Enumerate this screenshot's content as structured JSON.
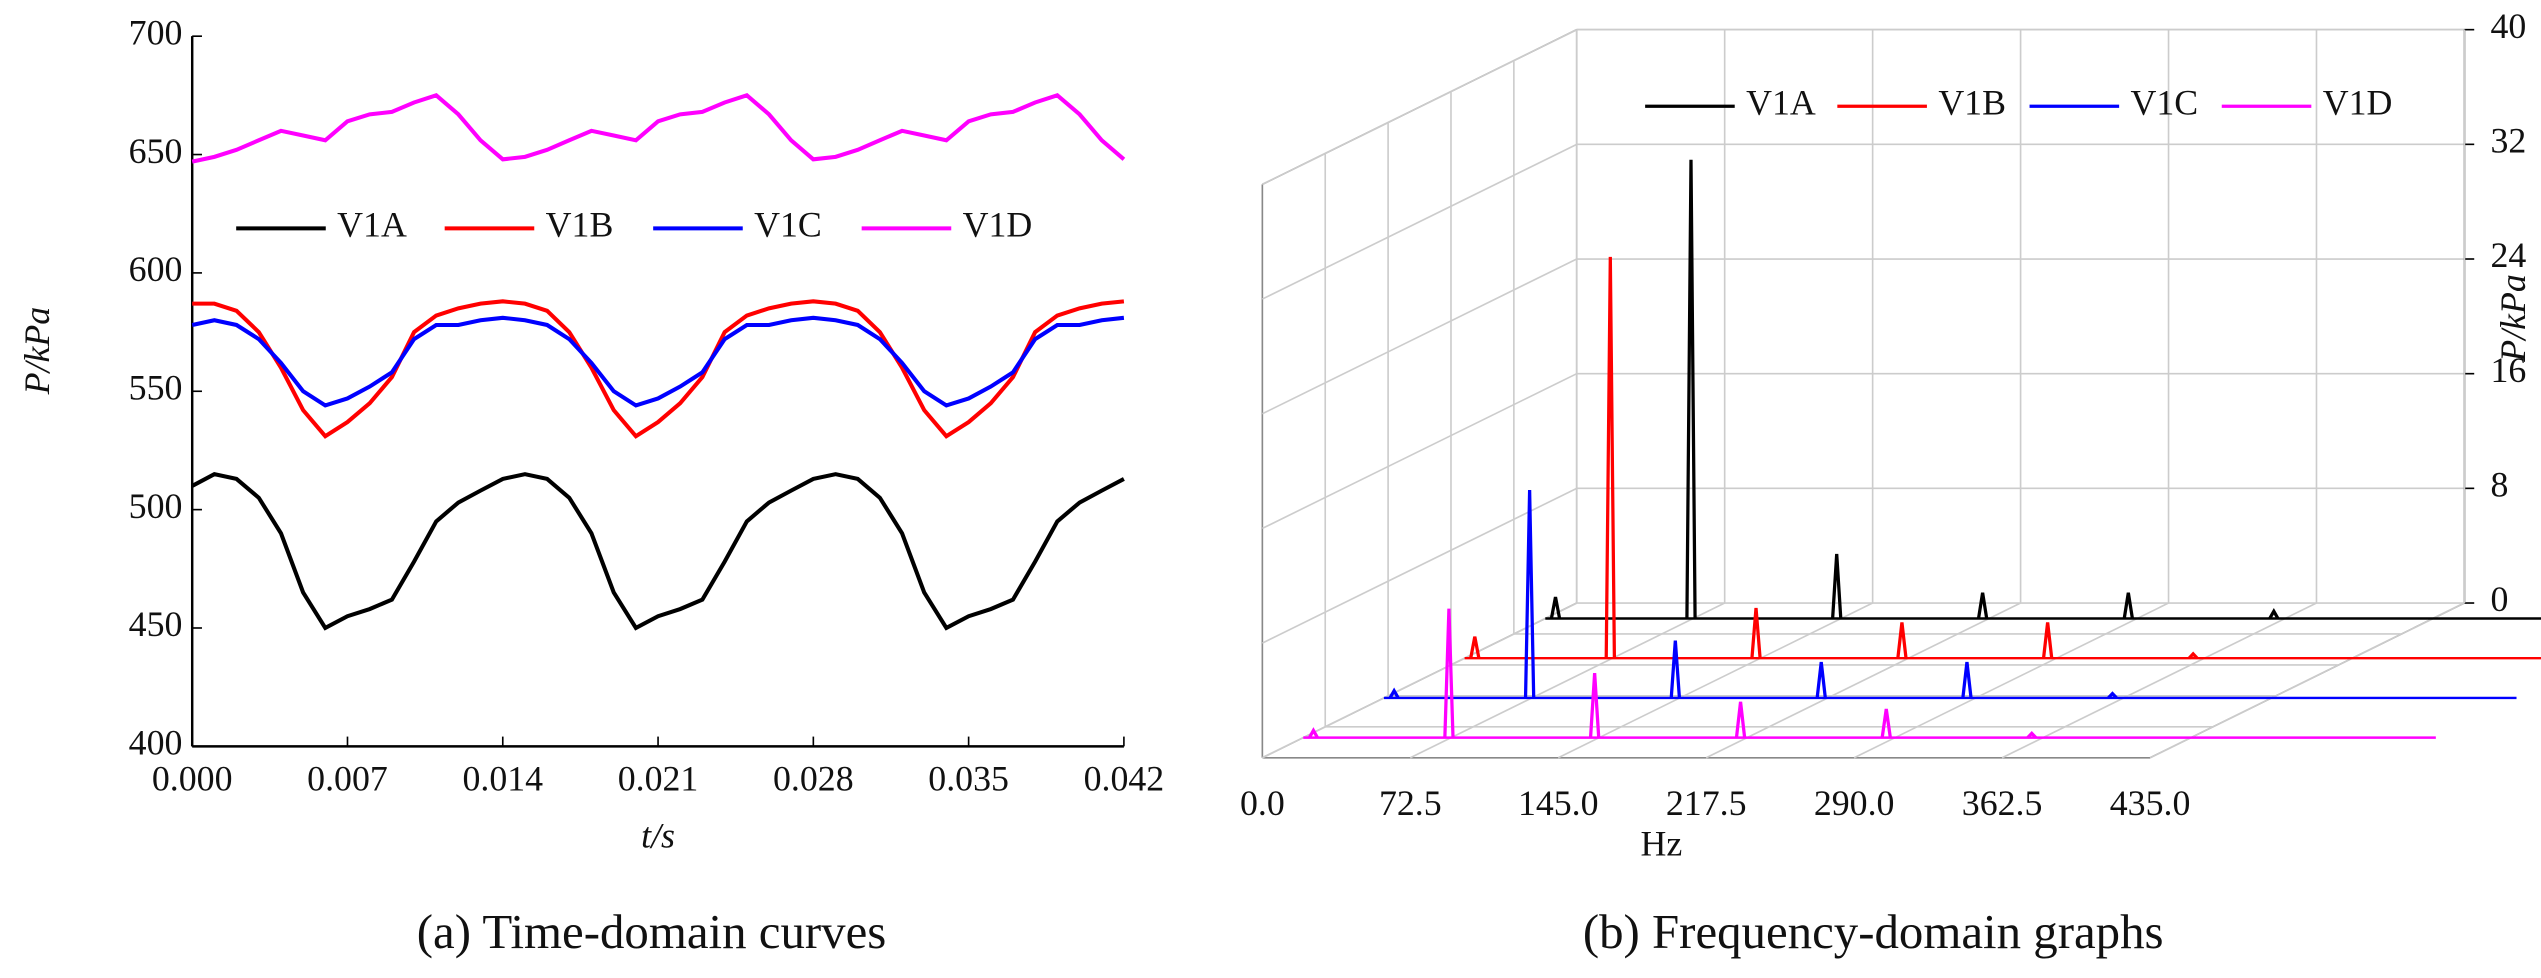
{
  "chart_data": [
    {
      "type": "line",
      "caption": "(a) Time-domain curves",
      "xlabel": "t/s",
      "ylabel": "P/kPa",
      "x": [
        0,
        0.001,
        0.002,
        0.003,
        0.004,
        0.005,
        0.006,
        0.007,
        0.008,
        0.009,
        0.01,
        0.011,
        0.012,
        0.013,
        0.014,
        0.015,
        0.016,
        0.017,
        0.018,
        0.019,
        0.02,
        0.021,
        0.022,
        0.023,
        0.024,
        0.025,
        0.026,
        0.027,
        0.028,
        0.029,
        0.03,
        0.031,
        0.032,
        0.033,
        0.034,
        0.035,
        0.036,
        0.037,
        0.038,
        0.039,
        0.04,
        0.041,
        0.042
      ],
      "xlim": [
        0,
        0.042
      ],
      "xticks": [
        {
          "value": 0,
          "label": "0.000"
        },
        0.007,
        0.014,
        0.021,
        0.028,
        0.035,
        0.042
      ],
      "ylim": [
        400,
        700
      ],
      "yticks": [
        400,
        450,
        500,
        550,
        600,
        650,
        700
      ],
      "series": [
        {
          "name": "V1A",
          "color": "#000000",
          "values": [
            510,
            515,
            513,
            505,
            490,
            465,
            450,
            455,
            458,
            462,
            478,
            495,
            503,
            508,
            513,
            515,
            513,
            505,
            490,
            465,
            450,
            455,
            458,
            462,
            478,
            495,
            503,
            508,
            513,
            515,
            513,
            505,
            490,
            465,
            450,
            455,
            458,
            462,
            478,
            495,
            503,
            508,
            513
          ]
        },
        {
          "name": "V1B",
          "color": "#ff0000",
          "values": [
            587,
            587,
            584,
            575,
            560,
            542,
            531,
            537,
            545,
            556,
            575,
            582,
            585,
            587,
            588,
            587,
            584,
            575,
            560,
            542,
            531,
            537,
            545,
            556,
            575,
            582,
            585,
            587,
            588,
            587,
            584,
            575,
            560,
            542,
            531,
            537,
            545,
            556,
            575,
            582,
            585,
            587,
            588
          ]
        },
        {
          "name": "V1C",
          "color": "#0000ff",
          "values": [
            578,
            580,
            578,
            572,
            562,
            550,
            544,
            547,
            552,
            558,
            572,
            578,
            578,
            580,
            581,
            580,
            578,
            572,
            562,
            550,
            544,
            547,
            552,
            558,
            572,
            578,
            578,
            580,
            581,
            580,
            578,
            572,
            562,
            550,
            544,
            547,
            552,
            558,
            572,
            578,
            578,
            580,
            581
          ]
        },
        {
          "name": "V1D",
          "color": "#ff00ff",
          "values": [
            647,
            649,
            652,
            656,
            660,
            658,
            656,
            664,
            667,
            668,
            672,
            675,
            667,
            656,
            648,
            649,
            652,
            656,
            660,
            658,
            656,
            664,
            667,
            668,
            672,
            675,
            667,
            656,
            648,
            649,
            652,
            656,
            660,
            658,
            656,
            664,
            667,
            668,
            672,
            675,
            667,
            656,
            648
          ]
        }
      ]
    },
    {
      "type": "waterfall3d",
      "caption": "(b) Frequency-domain graphs",
      "xlabel": "Hz",
      "zlabel": "P/kPa",
      "xlim": [
        0,
        435
      ],
      "xticks": [
        {
          "value": 0,
          "label": "0.0"
        },
        72.5,
        {
          "value": 145,
          "label": "145.0"
        },
        217.5,
        {
          "value": 290,
          "label": "290.0"
        },
        362.5,
        {
          "value": 435,
          "label": "435.0"
        }
      ],
      "zlim": [
        0,
        40
      ],
      "zticks": [
        0,
        8,
        16,
        24,
        32,
        40
      ],
      "series": [
        {
          "name": "V1A",
          "color": "#000000",
          "x": [
            5,
            71.4,
            142.8,
            214.3,
            285.7,
            357
          ],
          "values": [
            1.5,
            32,
            4.5,
            1.8,
            1.8,
            0.5
          ]
        },
        {
          "name": "V1B",
          "color": "#ff0000",
          "x": [
            5,
            71.4,
            142.8,
            214.3,
            285.7,
            357
          ],
          "values": [
            1.5,
            28,
            3.5,
            2.5,
            2.5,
            0.3
          ]
        },
        {
          "name": "V1C",
          "color": "#0000ff",
          "x": [
            5,
            71.4,
            142.8,
            214.3,
            285.7,
            357
          ],
          "values": [
            0.5,
            14.5,
            4,
            2.5,
            2.5,
            0.3
          ]
        },
        {
          "name": "V1D",
          "color": "#ff00ff",
          "x": [
            5,
            71.4,
            142.8,
            214.3,
            285.7,
            357
          ],
          "values": [
            0.5,
            9,
            4.5,
            2.5,
            2,
            0.3
          ]
        }
      ]
    }
  ]
}
